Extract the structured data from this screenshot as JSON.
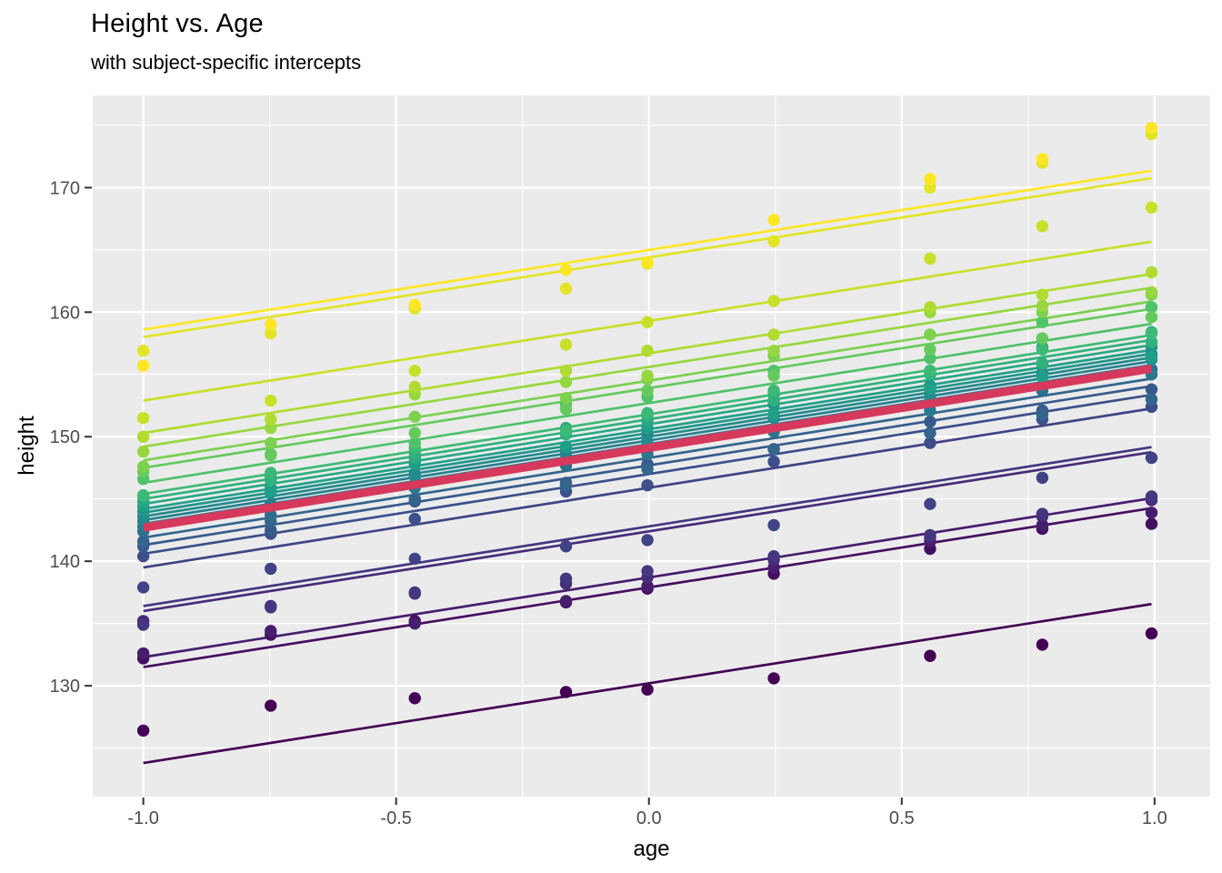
{
  "title": "Height vs. Age",
  "subtitle": "with subject-specific intercepts",
  "axes": {
    "x": {
      "label": "age",
      "range": [
        -1.1,
        1.11
      ],
      "major_ticks": [
        -1.0,
        -0.5,
        0.0,
        0.5,
        1.0
      ],
      "tick_labels": [
        "-1.0",
        "-0.5",
        "0.0",
        "0.5",
        "1.0"
      ],
      "minor_ticks": [
        -0.75,
        -0.25,
        0.25,
        0.75
      ]
    },
    "y": {
      "label": "height",
      "range": [
        121.1,
        177.4
      ],
      "major_ticks": [
        130,
        140,
        150,
        160,
        170
      ],
      "tick_labels": [
        "130",
        "140",
        "150",
        "160",
        "170"
      ],
      "minor_ticks": [
        125,
        135,
        145,
        155,
        165,
        175
      ]
    }
  },
  "style": {
    "panel_background": "#EBEBEB",
    "gridline_color": "#FFFFFF",
    "major_grid_width": 2.2,
    "minor_grid_width": 1.1,
    "tick_mark_color": "#333333",
    "tick_label_color": "#4D4D4D",
    "tick_label_size": 20,
    "point_radius": 6.7,
    "subject_line_width": 2.7,
    "mean_line_color": "#D6395C",
    "mean_line_width": 9
  },
  "chart_data": {
    "type": "scatter",
    "description": "26 subjects, points at 9 measurement occasions, subject-specific fitted lines (common slope, subject intercepts) plus thick population mean line",
    "x": [
      -1.0,
      -0.748,
      -0.463,
      -0.164,
      -0.003,
      0.247,
      0.556,
      0.778,
      0.994
    ],
    "mean_line": {
      "y_start": 142.7,
      "y_end": 155.5
    },
    "subjects": [
      {
        "id": 1,
        "color": "#440154",
        "line": [
          123.8,
          136.6
        ],
        "points": [
          126.4,
          128.4,
          129.0,
          129.5,
          129.7,
          130.6,
          132.4,
          133.3,
          134.2
        ]
      },
      {
        "id": 2,
        "color": "#450F61",
        "line": [
          131.5,
          144.3
        ],
        "points": [
          132.2,
          134.1,
          135.2,
          136.7,
          137.8,
          139.0,
          141.0,
          142.6,
          143.0
        ]
      },
      {
        "id": 3,
        "color": "#471D6E",
        "line": [
          132.3,
          145.1
        ],
        "points": [
          132.6,
          134.4,
          135.0,
          136.8,
          138.0,
          139.5,
          141.6,
          142.9,
          143.9
        ]
      },
      {
        "id": 4,
        "color": "#472B79",
        "line": [
          136.0,
          148.8
        ],
        "points": [
          135.2,
          136.4,
          137.4,
          138.2,
          138.7,
          140.1,
          141.9,
          143.6,
          144.9
        ]
      },
      {
        "id": 5,
        "color": "#443780",
        "line": [
          136.4,
          149.2
        ],
        "points": [
          134.9,
          136.3,
          137.5,
          138.6,
          139.2,
          140.4,
          142.1,
          143.8,
          145.2
        ]
      },
      {
        "id": 6,
        "color": "#404386",
        "line": [
          139.5,
          152.3
        ],
        "points": [
          137.9,
          139.4,
          140.2,
          141.2,
          141.7,
          142.9,
          144.6,
          146.7,
          148.3
        ]
      },
      {
        "id": 7,
        "color": "#3C4F8A",
        "line": [
          140.6,
          153.4
        ],
        "points": [
          140.4,
          142.2,
          143.4,
          145.6,
          146.1,
          148.0,
          149.5,
          151.4,
          152.4
        ]
      },
      {
        "id": 8,
        "color": "#375A8C",
        "line": [
          141.3,
          154.1
        ],
        "points": [
          141.2,
          142.5,
          144.8,
          146.3,
          147.8,
          149.0,
          151.2,
          152.1,
          153.8
        ]
      },
      {
        "id": 9,
        "color": "#33658D",
        "line": [
          141.9,
          154.7
        ],
        "points": [
          141.6,
          143.2,
          145.0,
          146.1,
          147.4,
          149.0,
          150.3,
          151.8,
          153.0
        ]
      },
      {
        "id": 10,
        "color": "#2E6E8E",
        "line": [
          142.6,
          155.4
        ],
        "points": [
          142.4,
          143.7,
          146.1,
          147.7,
          149.2,
          150.4,
          152.7,
          153.7,
          155.4
        ]
      },
      {
        "id": 11,
        "color": "#2A788E",
        "line": [
          143.0,
          155.8
        ],
        "points": [
          142.8,
          144.6,
          145.9,
          148.1,
          148.6,
          150.5,
          152.1,
          154.0,
          155.0
        ]
      },
      {
        "id": 12,
        "color": "#26818E",
        "line": [
          143.3,
          156.1
        ],
        "points": [
          143.2,
          144.6,
          147.0,
          148.6,
          150.2,
          151.5,
          153.8,
          154.8,
          156.6
        ]
      },
      {
        "id": 13,
        "color": "#248B8C",
        "line": [
          143.6,
          156.4
        ],
        "points": [
          143.6,
          145.5,
          146.8,
          149.1,
          149.6,
          151.6,
          153.2,
          155.1,
          156.2
        ]
      },
      {
        "id": 14,
        "color": "#21958B",
        "line": [
          143.9,
          156.7
        ],
        "points": [
          144.0,
          145.9,
          147.9,
          149.2,
          150.7,
          152.6,
          154.1,
          155.8,
          157.2
        ]
      },
      {
        "id": 15,
        "color": "#209F88",
        "line": [
          144.2,
          157.0
        ],
        "points": [
          144.4,
          145.6,
          147.8,
          149.2,
          150.7,
          151.8,
          153.9,
          154.8,
          156.4
        ]
      },
      {
        "id": 16,
        "color": "#28A883",
        "line": [
          144.6,
          157.4
        ],
        "points": [
          144.8,
          146.8,
          148.3,
          150.7,
          151.3,
          153.4,
          155.1,
          157.2,
          158.4
        ]
      },
      {
        "id": 17,
        "color": "#30B17D",
        "line": [
          145.0,
          157.8
        ],
        "points": [
          145.2,
          146.5,
          148.7,
          150.2,
          151.7,
          152.9,
          155.0,
          155.9,
          157.6
        ]
      },
      {
        "id": 18,
        "color": "#3CBA75",
        "line": [
          145.4,
          158.2
        ],
        "points": [
          145.3,
          147.1,
          149.1,
          150.5,
          151.9,
          153.7,
          155.3,
          157.0,
          158.3
        ]
      },
      {
        "id": 19,
        "color": "#50C269",
        "line": [
          146.3,
          159.1
        ],
        "points": [
          146.6,
          148.6,
          149.5,
          152.6,
          153.2,
          155.3,
          156.3,
          159.2,
          160.4
        ]
      },
      {
        "id": 20,
        "color": "#65CA5D",
        "line": [
          147.5,
          160.3
        ],
        "points": [
          147.2,
          148.5,
          150.3,
          152.2,
          153.7,
          154.9,
          157.0,
          157.9,
          159.6
        ]
      },
      {
        "id": 21,
        "color": "#7CD14F",
        "line": [
          148.1,
          160.9
        ],
        "points": [
          147.6,
          149.5,
          151.6,
          153.1,
          154.6,
          156.5,
          158.2,
          160.0,
          161.4
        ]
      },
      {
        "id": 22,
        "color": "#96D73F",
        "line": [
          149.2,
          162.0
        ],
        "points": [
          148.8,
          150.7,
          153.4,
          154.4,
          154.9,
          156.9,
          160.0,
          160.5,
          161.6
        ]
      },
      {
        "id": 23,
        "color": "#AFDC2F",
        "line": [
          150.3,
          163.1
        ],
        "points": [
          150.0,
          151.4,
          154.0,
          155.3,
          156.9,
          158.2,
          160.4,
          161.4,
          163.2
        ]
      },
      {
        "id": 24,
        "color": "#C9E029",
        "line": [
          152.9,
          165.7
        ],
        "points": [
          151.5,
          152.9,
          155.3,
          157.4,
          159.2,
          160.9,
          164.3,
          166.9,
          168.4
        ]
      },
      {
        "id": 25,
        "color": "#E3E427",
        "line": [
          158.0,
          170.8
        ],
        "points": [
          156.9,
          158.3,
          160.3,
          161.9,
          163.9,
          165.7,
          170.0,
          172.0,
          174.3
        ]
      },
      {
        "id": 26,
        "color": "#FDE725",
        "line": [
          158.6,
          171.4
        ],
        "points": [
          155.7,
          159.0,
          160.6,
          163.4,
          164.0,
          167.4,
          170.7,
          172.3,
          174.8
        ]
      }
    ]
  }
}
